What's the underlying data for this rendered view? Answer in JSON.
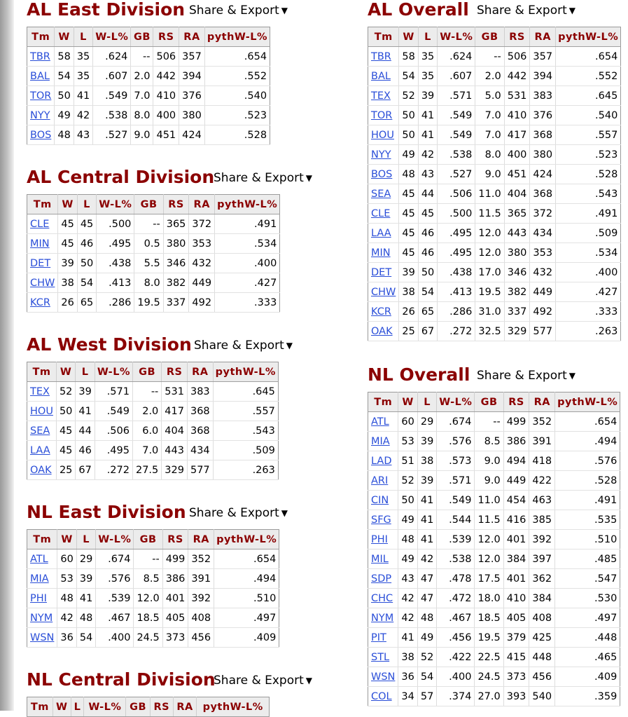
{
  "share_label": "Share & Export",
  "headers": [
    "Tm",
    "W",
    "L",
    "W-L%",
    "GB",
    "RS",
    "RA",
    "pythW-L%"
  ],
  "sections": [
    {
      "id": "al-east",
      "title": "AL East Division",
      "rows": [
        [
          "TBR",
          "58",
          "35",
          ".624",
          "--",
          "506",
          "357",
          ".654"
        ],
        [
          "BAL",
          "54",
          "35",
          ".607",
          "2.0",
          "442",
          "394",
          ".552"
        ],
        [
          "TOR",
          "50",
          "41",
          ".549",
          "7.0",
          "410",
          "376",
          ".540"
        ],
        [
          "NYY",
          "49",
          "42",
          ".538",
          "8.0",
          "400",
          "380",
          ".523"
        ],
        [
          "BOS",
          "48",
          "43",
          ".527",
          "9.0",
          "451",
          "424",
          ".528"
        ]
      ]
    },
    {
      "id": "al-central",
      "title": "AL Central Division",
      "rows": [
        [
          "CLE",
          "45",
          "45",
          ".500",
          "--",
          "365",
          "372",
          ".491"
        ],
        [
          "MIN",
          "45",
          "46",
          ".495",
          "0.5",
          "380",
          "353",
          ".534"
        ],
        [
          "DET",
          "39",
          "50",
          ".438",
          "5.5",
          "346",
          "432",
          ".400"
        ],
        [
          "CHW",
          "38",
          "54",
          ".413",
          "8.0",
          "382",
          "449",
          ".427"
        ],
        [
          "KCR",
          "26",
          "65",
          ".286",
          "19.5",
          "337",
          "492",
          ".333"
        ]
      ]
    },
    {
      "id": "al-west",
      "title": "AL West Division",
      "rows": [
        [
          "TEX",
          "52",
          "39",
          ".571",
          "--",
          "531",
          "383",
          ".645"
        ],
        [
          "HOU",
          "50",
          "41",
          ".549",
          "2.0",
          "417",
          "368",
          ".557"
        ],
        [
          "SEA",
          "45",
          "44",
          ".506",
          "6.0",
          "404",
          "368",
          ".543"
        ],
        [
          "LAA",
          "45",
          "46",
          ".495",
          "7.0",
          "443",
          "434",
          ".509"
        ],
        [
          "OAK",
          "25",
          "67",
          ".272",
          "27.5",
          "329",
          "577",
          ".263"
        ]
      ]
    },
    {
      "id": "nl-east",
      "title": "NL East Division",
      "rows": [
        [
          "ATL",
          "60",
          "29",
          ".674",
          "--",
          "499",
          "352",
          ".654"
        ],
        [
          "MIA",
          "53",
          "39",
          ".576",
          "8.5",
          "386",
          "391",
          ".494"
        ],
        [
          "PHI",
          "48",
          "41",
          ".539",
          "12.0",
          "401",
          "392",
          ".510"
        ],
        [
          "NYM",
          "42",
          "48",
          ".467",
          "18.5",
          "405",
          "408",
          ".497"
        ],
        [
          "WSN",
          "36",
          "54",
          ".400",
          "24.5",
          "373",
          "456",
          ".409"
        ]
      ]
    },
    {
      "id": "nl-central",
      "title": "NL Central Division",
      "rows": []
    },
    {
      "id": "al-overall",
      "title": "AL Overall",
      "rows": [
        [
          "TBR",
          "58",
          "35",
          ".624",
          "--",
          "506",
          "357",
          ".654"
        ],
        [
          "BAL",
          "54",
          "35",
          ".607",
          "2.0",
          "442",
          "394",
          ".552"
        ],
        [
          "TEX",
          "52",
          "39",
          ".571",
          "5.0",
          "531",
          "383",
          ".645"
        ],
        [
          "TOR",
          "50",
          "41",
          ".549",
          "7.0",
          "410",
          "376",
          ".540"
        ],
        [
          "HOU",
          "50",
          "41",
          ".549",
          "7.0",
          "417",
          "368",
          ".557"
        ],
        [
          "NYY",
          "49",
          "42",
          ".538",
          "8.0",
          "400",
          "380",
          ".523"
        ],
        [
          "BOS",
          "48",
          "43",
          ".527",
          "9.0",
          "451",
          "424",
          ".528"
        ],
        [
          "SEA",
          "45",
          "44",
          ".506",
          "11.0",
          "404",
          "368",
          ".543"
        ],
        [
          "CLE",
          "45",
          "45",
          ".500",
          "11.5",
          "365",
          "372",
          ".491"
        ],
        [
          "LAA",
          "45",
          "46",
          ".495",
          "12.0",
          "443",
          "434",
          ".509"
        ],
        [
          "MIN",
          "45",
          "46",
          ".495",
          "12.0",
          "380",
          "353",
          ".534"
        ],
        [
          "DET",
          "39",
          "50",
          ".438",
          "17.0",
          "346",
          "432",
          ".400"
        ],
        [
          "CHW",
          "38",
          "54",
          ".413",
          "19.5",
          "382",
          "449",
          ".427"
        ],
        [
          "KCR",
          "26",
          "65",
          ".286",
          "31.0",
          "337",
          "492",
          ".333"
        ],
        [
          "OAK",
          "25",
          "67",
          ".272",
          "32.5",
          "329",
          "577",
          ".263"
        ]
      ]
    },
    {
      "id": "nl-overall",
      "title": "NL Overall",
      "rows": [
        [
          "ATL",
          "60",
          "29",
          ".674",
          "--",
          "499",
          "352",
          ".654"
        ],
        [
          "MIA",
          "53",
          "39",
          ".576",
          "8.5",
          "386",
          "391",
          ".494"
        ],
        [
          "LAD",
          "51",
          "38",
          ".573",
          "9.0",
          "494",
          "418",
          ".576"
        ],
        [
          "ARI",
          "52",
          "39",
          ".571",
          "9.0",
          "449",
          "422",
          ".528"
        ],
        [
          "CIN",
          "50",
          "41",
          ".549",
          "11.0",
          "454",
          "463",
          ".491"
        ],
        [
          "SFG",
          "49",
          "41",
          ".544",
          "11.5",
          "416",
          "385",
          ".535"
        ],
        [
          "PHI",
          "48",
          "41",
          ".539",
          "12.0",
          "401",
          "392",
          ".510"
        ],
        [
          "MIL",
          "49",
          "42",
          ".538",
          "12.0",
          "384",
          "397",
          ".485"
        ],
        [
          "SDP",
          "43",
          "47",
          ".478",
          "17.5",
          "401",
          "362",
          ".547"
        ],
        [
          "CHC",
          "42",
          "47",
          ".472",
          "18.0",
          "410",
          "384",
          ".530"
        ],
        [
          "NYM",
          "42",
          "48",
          ".467",
          "18.5",
          "405",
          "408",
          ".497"
        ],
        [
          "PIT",
          "41",
          "49",
          ".456",
          "19.5",
          "379",
          "425",
          ".448"
        ],
        [
          "STL",
          "38",
          "52",
          ".422",
          "22.5",
          "415",
          "448",
          ".465"
        ],
        [
          "WSN",
          "36",
          "54",
          ".400",
          "24.5",
          "373",
          "456",
          ".409"
        ],
        [
          "COL",
          "34",
          "57",
          ".374",
          "27.0",
          "393",
          "540",
          ".359"
        ]
      ]
    }
  ]
}
